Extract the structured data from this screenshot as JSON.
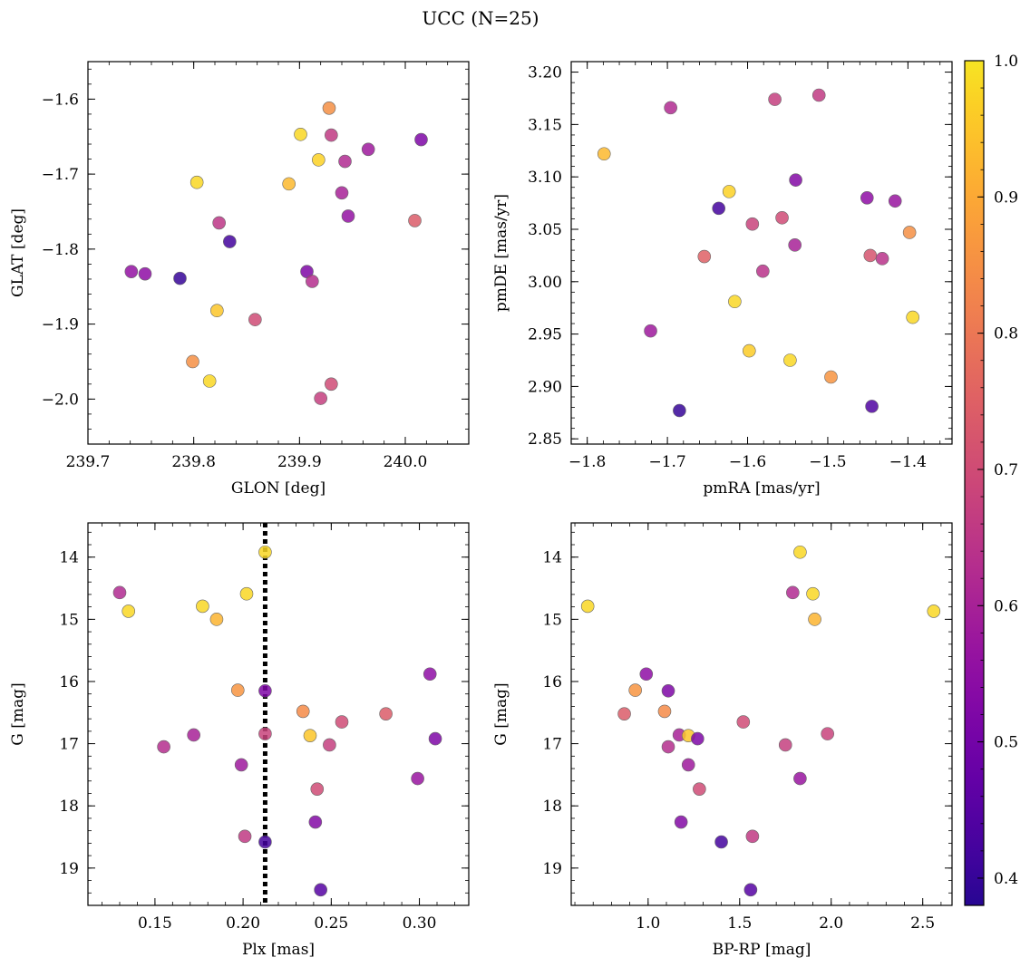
{
  "figure": {
    "title": "UCC (N=25)"
  },
  "colorbar": {
    "min": 0.38,
    "max": 1.0,
    "ticks": [
      0.4,
      0.5,
      0.6,
      0.7,
      0.8,
      0.9,
      1.0
    ],
    "tick_labels": [
      "0.4",
      "0.5",
      "0.6",
      "0.7",
      "0.8",
      "0.9",
      "1.0"
    ],
    "colormap": "plasma"
  },
  "chart_data": [
    {
      "type": "scatter",
      "xlabel": "GLON [deg]",
      "ylabel": "GLAT [deg]",
      "xlim": [
        239.7,
        240.06
      ],
      "ylim": [
        -2.06,
        -1.55
      ],
      "xticks": [
        239.7,
        239.8,
        239.9,
        240.0
      ],
      "xtick_labels": [
        "239.7",
        "239.8",
        "239.9",
        "240.0"
      ],
      "yticks": [
        -1.6,
        -1.7,
        -1.8,
        -1.9,
        -2.0
      ],
      "ytick_labels": [
        "−1.6",
        "−1.7",
        "−1.8",
        "−1.9",
        "−2.0"
      ],
      "y_inverted": false,
      "points": [
        {
          "x": 239.928,
          "y": -1.612,
          "c": 0.85
        },
        {
          "x": 239.901,
          "y": -1.647,
          "c": 0.98
        },
        {
          "x": 239.93,
          "y": -1.648,
          "c": 0.66
        },
        {
          "x": 239.918,
          "y": -1.681,
          "c": 0.97
        },
        {
          "x": 239.943,
          "y": -1.683,
          "c": 0.62
        },
        {
          "x": 239.965,
          "y": -1.667,
          "c": 0.58
        },
        {
          "x": 240.015,
          "y": -1.654,
          "c": 0.52
        },
        {
          "x": 239.89,
          "y": -1.713,
          "c": 0.93
        },
        {
          "x": 239.803,
          "y": -1.711,
          "c": 0.98
        },
        {
          "x": 239.94,
          "y": -1.725,
          "c": 0.6
        },
        {
          "x": 239.946,
          "y": -1.756,
          "c": 0.56
        },
        {
          "x": 240.009,
          "y": -1.762,
          "c": 0.74
        },
        {
          "x": 239.824,
          "y": -1.765,
          "c": 0.65
        },
        {
          "x": 239.834,
          "y": -1.79,
          "c": 0.42
        },
        {
          "x": 239.741,
          "y": -1.83,
          "c": 0.56
        },
        {
          "x": 239.754,
          "y": -1.833,
          "c": 0.55
        },
        {
          "x": 239.787,
          "y": -1.839,
          "c": 0.4
        },
        {
          "x": 239.907,
          "y": -1.83,
          "c": 0.52
        },
        {
          "x": 239.912,
          "y": -1.843,
          "c": 0.63
        },
        {
          "x": 239.822,
          "y": -1.882,
          "c": 0.95
        },
        {
          "x": 239.858,
          "y": -1.894,
          "c": 0.7
        },
        {
          "x": 239.799,
          "y": -1.95,
          "c": 0.85
        },
        {
          "x": 239.815,
          "y": -1.976,
          "c": 0.98
        },
        {
          "x": 239.93,
          "y": -1.98,
          "c": 0.7
        },
        {
          "x": 239.92,
          "y": -1.999,
          "c": 0.67
        }
      ]
    },
    {
      "type": "scatter",
      "xlabel": "pmRA [mas/yr]",
      "ylabel": "pmDE [mas/yr]",
      "xlim": [
        -1.82,
        -1.345
      ],
      "ylim": [
        2.845,
        3.21
      ],
      "xticks": [
        -1.8,
        -1.7,
        -1.6,
        -1.5,
        -1.4
      ],
      "xtick_labels": [
        "−1.8",
        "−1.7",
        "−1.6",
        "−1.5",
        "−1.4"
      ],
      "yticks": [
        2.85,
        2.9,
        2.95,
        3.0,
        3.05,
        3.1,
        3.15,
        3.2
      ],
      "ytick_labels": [
        "2.85",
        "2.90",
        "2.95",
        "3.00",
        "3.05",
        "3.10",
        "3.15",
        "3.20"
      ],
      "y_inverted": false,
      "points": [
        {
          "x": -1.511,
          "y": 3.178,
          "c": 0.66
        },
        {
          "x": -1.566,
          "y": 3.174,
          "c": 0.67
        },
        {
          "x": -1.696,
          "y": 3.166,
          "c": 0.62
        },
        {
          "x": -1.779,
          "y": 3.122,
          "c": 0.93
        },
        {
          "x": -1.54,
          "y": 3.097,
          "c": 0.53
        },
        {
          "x": -1.623,
          "y": 3.086,
          "c": 0.97
        },
        {
          "x": -1.451,
          "y": 3.08,
          "c": 0.55
        },
        {
          "x": -1.416,
          "y": 3.077,
          "c": 0.57
        },
        {
          "x": -1.636,
          "y": 3.07,
          "c": 0.42
        },
        {
          "x": -1.557,
          "y": 3.061,
          "c": 0.7
        },
        {
          "x": -1.594,
          "y": 3.055,
          "c": 0.68
        },
        {
          "x": -1.398,
          "y": 3.047,
          "c": 0.85
        },
        {
          "x": -1.541,
          "y": 3.035,
          "c": 0.6
        },
        {
          "x": -1.447,
          "y": 3.025,
          "c": 0.72
        },
        {
          "x": -1.654,
          "y": 3.024,
          "c": 0.75
        },
        {
          "x": -1.432,
          "y": 3.022,
          "c": 0.64
        },
        {
          "x": -1.581,
          "y": 3.01,
          "c": 0.64
        },
        {
          "x": -1.616,
          "y": 2.981,
          "c": 0.98
        },
        {
          "x": -1.394,
          "y": 2.966,
          "c": 0.98
        },
        {
          "x": -1.721,
          "y": 2.953,
          "c": 0.58
        },
        {
          "x": -1.598,
          "y": 2.934,
          "c": 0.96
        },
        {
          "x": -1.547,
          "y": 2.925,
          "c": 0.98
        },
        {
          "x": -1.496,
          "y": 2.909,
          "c": 0.86
        },
        {
          "x": -1.445,
          "y": 2.881,
          "c": 0.44
        },
        {
          "x": -1.685,
          "y": 2.877,
          "c": 0.4
        }
      ]
    },
    {
      "type": "scatter",
      "xlabel": "Plx [mas]",
      "ylabel": "G [mag]",
      "xlim": [
        0.112,
        0.328
      ],
      "ylim": [
        13.45,
        19.6
      ],
      "xticks": [
        0.15,
        0.2,
        0.25,
        0.3
      ],
      "xtick_labels": [
        "0.15",
        "0.20",
        "0.25",
        "0.30"
      ],
      "yticks": [
        14,
        15,
        16,
        17,
        18,
        19
      ],
      "ytick_labels": [
        "14",
        "15",
        "16",
        "17",
        "18",
        "19"
      ],
      "y_inverted": true,
      "vline": 0.2125,
      "points": [
        {
          "x": 0.2125,
          "y": 13.92,
          "c": 0.98
        },
        {
          "x": 0.13,
          "y": 14.57,
          "c": 0.62
        },
        {
          "x": 0.202,
          "y": 14.59,
          "c": 0.98
        },
        {
          "x": 0.177,
          "y": 14.79,
          "c": 0.98
        },
        {
          "x": 0.135,
          "y": 14.87,
          "c": 0.98
        },
        {
          "x": 0.185,
          "y": 15.0,
          "c": 0.92
        },
        {
          "x": 0.306,
          "y": 15.88,
          "c": 0.55
        },
        {
          "x": 0.197,
          "y": 16.14,
          "c": 0.86
        },
        {
          "x": 0.2125,
          "y": 16.15,
          "c": 0.52
        },
        {
          "x": 0.234,
          "y": 16.48,
          "c": 0.84
        },
        {
          "x": 0.281,
          "y": 16.52,
          "c": 0.74
        },
        {
          "x": 0.256,
          "y": 16.65,
          "c": 0.7
        },
        {
          "x": 0.2125,
          "y": 16.84,
          "c": 0.68
        },
        {
          "x": 0.172,
          "y": 16.86,
          "c": 0.6
        },
        {
          "x": 0.238,
          "y": 16.87,
          "c": 0.95
        },
        {
          "x": 0.309,
          "y": 16.92,
          "c": 0.52
        },
        {
          "x": 0.249,
          "y": 17.02,
          "c": 0.67
        },
        {
          "x": 0.155,
          "y": 17.05,
          "c": 0.63
        },
        {
          "x": 0.199,
          "y": 17.34,
          "c": 0.58
        },
        {
          "x": 0.299,
          "y": 17.56,
          "c": 0.57
        },
        {
          "x": 0.242,
          "y": 17.73,
          "c": 0.7
        },
        {
          "x": 0.241,
          "y": 18.26,
          "c": 0.53
        },
        {
          "x": 0.201,
          "y": 18.49,
          "c": 0.66
        },
        {
          "x": 0.2125,
          "y": 18.58,
          "c": 0.42
        },
        {
          "x": 0.244,
          "y": 19.35,
          "c": 0.45
        }
      ]
    },
    {
      "type": "scatter",
      "xlabel": "BP-RP [mag]",
      "ylabel": "G [mag]",
      "xlim": [
        0.58,
        2.66
      ],
      "ylim": [
        13.45,
        19.6
      ],
      "xticks": [
        1.0,
        1.5,
        2.0,
        2.5
      ],
      "xtick_labels": [
        "1.0",
        "1.5",
        "2.0",
        "2.5"
      ],
      "yticks": [
        14,
        15,
        16,
        17,
        18,
        19
      ],
      "ytick_labels": [
        "14",
        "15",
        "16",
        "17",
        "18",
        "19"
      ],
      "y_inverted": true,
      "points": [
        {
          "x": 1.83,
          "y": 13.92,
          "c": 0.98
        },
        {
          "x": 1.79,
          "y": 14.57,
          "c": 0.62
        },
        {
          "x": 1.9,
          "y": 14.59,
          "c": 0.98
        },
        {
          "x": 0.67,
          "y": 14.79,
          "c": 0.98
        },
        {
          "x": 2.56,
          "y": 14.87,
          "c": 0.98
        },
        {
          "x": 1.91,
          "y": 15.0,
          "c": 0.92
        },
        {
          "x": 0.99,
          "y": 15.88,
          "c": 0.55
        },
        {
          "x": 0.93,
          "y": 16.14,
          "c": 0.86
        },
        {
          "x": 1.11,
          "y": 16.15,
          "c": 0.52
        },
        {
          "x": 1.09,
          "y": 16.48,
          "c": 0.84
        },
        {
          "x": 0.87,
          "y": 16.52,
          "c": 0.74
        },
        {
          "x": 1.52,
          "y": 16.65,
          "c": 0.7
        },
        {
          "x": 1.98,
          "y": 16.84,
          "c": 0.68
        },
        {
          "x": 1.17,
          "y": 16.86,
          "c": 0.6
        },
        {
          "x": 1.22,
          "y": 16.87,
          "c": 0.95
        },
        {
          "x": 1.27,
          "y": 16.92,
          "c": 0.52
        },
        {
          "x": 1.75,
          "y": 17.02,
          "c": 0.67
        },
        {
          "x": 1.11,
          "y": 17.05,
          "c": 0.63
        },
        {
          "x": 1.22,
          "y": 17.34,
          "c": 0.58
        },
        {
          "x": 1.83,
          "y": 17.56,
          "c": 0.57
        },
        {
          "x": 1.28,
          "y": 17.73,
          "c": 0.7
        },
        {
          "x": 1.18,
          "y": 18.26,
          "c": 0.53
        },
        {
          "x": 1.57,
          "y": 18.49,
          "c": 0.66
        },
        {
          "x": 1.4,
          "y": 18.58,
          "c": 0.42
        },
        {
          "x": 1.56,
          "y": 19.35,
          "c": 0.45
        }
      ]
    }
  ]
}
